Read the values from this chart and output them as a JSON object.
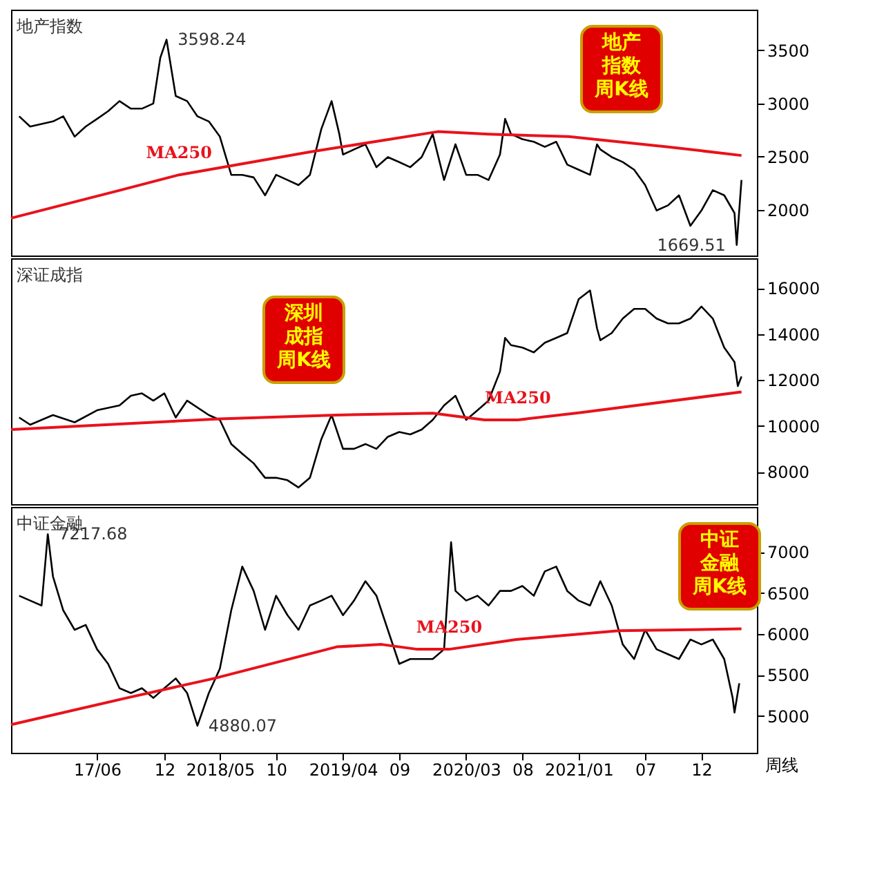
{
  "chart_data": [
    {
      "type": "line",
      "title": "地产指数",
      "xlim": [
        "2016-10-10",
        "2022-05-01"
      ],
      "ylim": [
        1570,
        3880
      ],
      "yticks": [
        2000,
        2500,
        3000,
        3500
      ],
      "tick_labels": "y",
      "grid": false,
      "annotations": [
        "地产指数周K线",
        {
          "text": "3598.24",
          "x": "2017-12-07",
          "y": 3598.24
        },
        {
          "text": "1669.51",
          "x": "2022-03-07",
          "y": 1669.51
        }
      ],
      "series": [
        {
          "color": "#000000",
          "x": [
            "2016-11-01",
            "2016-12-01",
            "2017-01-01",
            "2017-02-01",
            "2017-03-01",
            "2017-04-01",
            "2017-05-01",
            "2017-06-01",
            "2017-07-01",
            "2017-08-01",
            "2017-09-01",
            "2017-10-01",
            "2017-11-01",
            "2017-11-20",
            "2017-12-07",
            "2018-01-01",
            "2018-02-01",
            "2018-03-01",
            "2018-04-01",
            "2018-05-01",
            "2018-06-01",
            "2018-07-01",
            "2018-08-01",
            "2018-09-01",
            "2018-10-01",
            "2018-11-01",
            "2018-12-01",
            "2019-01-01",
            "2019-02-01",
            "2019-03-01",
            "2019-03-22",
            "2019-04-01",
            "2019-05-01",
            "2019-06-01",
            "2019-07-01",
            "2019-08-01",
            "2019-09-01",
            "2019-10-01",
            "2019-11-01",
            "2019-12-01",
            "2020-01-01",
            "2020-02-01",
            "2020-03-01",
            "2020-04-01",
            "2020-05-01",
            "2020-06-01",
            "2020-06-15",
            "2020-07-01",
            "2020-08-01",
            "2020-09-01",
            "2020-10-01",
            "2020-11-01",
            "2020-12-01",
            "2021-01-01",
            "2021-02-01",
            "2021-02-20",
            "2021-03-01",
            "2021-04-01",
            "2021-05-01",
            "2021-06-01",
            "2021-07-01",
            "2021-08-01",
            "2021-09-01",
            "2021-10-01",
            "2021-11-01",
            "2021-12-01",
            "2022-01-01",
            "2022-02-01",
            "2022-03-01",
            "2022-03-07",
            "2022-03-20"
          ],
          "values": [
            2878,
            2782,
            2806,
            2830,
            2878,
            2687,
            2782,
            2854,
            2926,
            3021,
            2950,
            2950,
            2998,
            3428,
            3598.24,
            3069,
            3021,
            2878,
            2830,
            2687,
            2328,
            2328,
            2304,
            2136,
            2328,
            2280,
            2232,
            2328,
            2758,
            3021,
            2711,
            2519,
            2567,
            2615,
            2400,
            2495,
            2448,
            2400,
            2495,
            2711,
            2280,
            2615,
            2328,
            2328,
            2280,
            2519,
            2854,
            2711,
            2663,
            2639,
            2591,
            2639,
            2424,
            2376,
            2328,
            2615,
            2567,
            2495,
            2448,
            2376,
            2232,
            1993,
            2041,
            2136,
            1849,
            1993,
            2184,
            2136,
            1969,
            1669.51,
            2280
          ]
        },
        {
          "name": "MA250",
          "color": "#e8121b",
          "x": [
            "2016-10-10",
            "2017-08-03",
            "2018-01-10",
            "2019-01-01",
            "2019-12-15",
            "2020-05-01",
            "2020-12-05",
            "2021-09-01",
            "2022-03-20"
          ],
          "values": [
            1921,
            2184,
            2328,
            2543,
            2734,
            2711,
            2687,
            2591,
            2510
          ]
        }
      ]
    },
    {
      "type": "line",
      "title": "深证成指",
      "xlim": [
        "2016-10-10",
        "2022-05-01"
      ],
      "ylim": [
        6600,
        17300
      ],
      "yticks": [
        8000,
        10000,
        12000,
        14000,
        16000
      ],
      "tick_labels": "y",
      "grid": false,
      "annotations": [
        "深圳成指周K线"
      ],
      "series": [
        {
          "color": "#000000",
          "x": [
            "2016-11-01",
            "2016-12-01",
            "2017-02-01",
            "2017-04-01",
            "2017-06-01",
            "2017-08-01",
            "2017-09-01",
            "2017-10-01",
            "2017-11-01",
            "2017-12-01",
            "2018-01-01",
            "2018-02-01",
            "2018-04-01",
            "2018-05-01",
            "2018-06-01",
            "2018-07-01",
            "2018-08-01",
            "2018-09-01",
            "2018-10-01",
            "2018-11-01",
            "2018-12-01",
            "2019-01-01",
            "2019-02-01",
            "2019-03-01",
            "2019-04-01",
            "2019-05-01",
            "2019-06-01",
            "2019-07-01",
            "2019-08-01",
            "2019-09-01",
            "2019-10-01",
            "2019-11-01",
            "2019-12-01",
            "2020-01-01",
            "2020-02-01",
            "2020-03-01",
            "2020-04-01",
            "2020-05-01",
            "2020-06-01",
            "2020-06-15",
            "2020-07-01",
            "2020-08-01",
            "2020-09-01",
            "2020-10-01",
            "2020-11-01",
            "2020-12-01",
            "2021-01-01",
            "2021-02-01",
            "2021-02-20",
            "2021-03-01",
            "2021-04-01",
            "2021-05-01",
            "2021-06-01",
            "2021-07-01",
            "2021-08-01",
            "2021-09-01",
            "2021-10-01",
            "2021-11-01",
            "2021-12-01",
            "2022-01-01",
            "2022-02-01",
            "2022-03-01",
            "2022-03-10",
            "2022-03-20"
          ],
          "values": [
            10372,
            10057,
            10477,
            10162,
            10687,
            10897,
            11317,
            11422,
            11107,
            11422,
            10372,
            11107,
            10477,
            10267,
            9217,
            8797,
            8377,
            7747,
            7747,
            7642,
            7327,
            7747,
            9427,
            10477,
            9007,
            9007,
            9217,
            9007,
            9532,
            9742,
            9637,
            9847,
            10267,
            10897,
            11317,
            10267,
            10687,
            11107,
            12367,
            13837,
            13522,
            13417,
            13207,
            13627,
            13837,
            14047,
            15517,
            15900,
            14257,
            13732,
            14047,
            14677,
            15097,
            15097,
            14677,
            14467,
            14467,
            14677,
            15202,
            14677,
            13417,
            12787,
            11737,
            12157
          ]
        },
        {
          "name": "MA250",
          "color": "#e8121b",
          "x": [
            "2016-10-10",
            "2018-05-01",
            "2019-03-15",
            "2019-12-01",
            "2020-04-20",
            "2020-07-20",
            "2021-01-05",
            "2022-03-20"
          ],
          "values": [
            9847,
            10309,
            10477,
            10561,
            10267,
            10267,
            10582,
            11485
          ]
        }
      ]
    },
    {
      "type": "line",
      "title": "中证金融",
      "xlim": [
        "2016-10-10",
        "2022-05-01"
      ],
      "ylim": [
        4550,
        7550
      ],
      "yticks": [
        5000,
        5500,
        6000,
        6500,
        7000
      ],
      "grid": false,
      "xticks": [
        {
          "value": "2017-06-01",
          "label": "17/06"
        },
        {
          "value": "2017-12-01",
          "label": "12"
        },
        {
          "value": "2018-05-01",
          "label": "2018/05"
        },
        {
          "value": "2018-10-01",
          "label": "10"
        },
        {
          "value": "2019-04-01",
          "label": "2019/04"
        },
        {
          "value": "2019-09-01",
          "label": "09"
        },
        {
          "value": "2020-03-01",
          "label": "2020/03"
        },
        {
          "value": "2020-08-01",
          "label": "08"
        },
        {
          "value": "2021-01-01",
          "label": "2021/01"
        },
        {
          "value": "2021-07-01",
          "label": "07"
        },
        {
          "value": "2021-12-01",
          "label": "12"
        }
      ],
      "annotations": [
        "中证金融周K线",
        "周线",
        {
          "text": "7217.68",
          "x": "2017-01-18",
          "y": 7217.68
        },
        {
          "text": "4880.07",
          "x": "2018-03-01",
          "y": 4880.07
        }
      ],
      "series": [
        {
          "color": "#000000",
          "x": [
            "2016-11-01",
            "2016-12-01",
            "2017-01-01",
            "2017-01-18",
            "2017-02-01",
            "2017-03-01",
            "2017-04-01",
            "2017-05-01",
            "2017-06-01",
            "2017-07-01",
            "2017-08-01",
            "2017-09-01",
            "2017-10-01",
            "2017-11-01",
            "2017-12-01",
            "2018-01-01",
            "2018-02-01",
            "2018-03-01",
            "2018-04-01",
            "2018-05-01",
            "2018-06-01",
            "2018-07-01",
            "2018-08-01",
            "2018-09-01",
            "2018-10-01",
            "2018-11-01",
            "2018-12-01",
            "2019-01-01",
            "2019-02-01",
            "2019-03-01",
            "2019-04-01",
            "2019-05-01",
            "2019-06-01",
            "2019-07-01",
            "2019-08-01",
            "2019-09-01",
            "2019-10-01",
            "2019-11-01",
            "2019-12-01",
            "2020-01-01",
            "2020-01-20",
            "2020-02-01",
            "2020-03-01",
            "2020-04-01",
            "2020-05-01",
            "2020-06-01",
            "2020-07-01",
            "2020-08-01",
            "2020-09-01",
            "2020-10-01",
            "2020-11-01",
            "2020-12-01",
            "2021-01-01",
            "2021-02-01",
            "2021-03-01",
            "2021-04-01",
            "2021-05-01",
            "2021-06-01",
            "2021-07-01",
            "2021-08-01",
            "2021-09-01",
            "2021-10-01",
            "2021-11-01",
            "2021-12-01",
            "2022-01-01",
            "2022-02-01",
            "2022-02-24",
            "2022-03-01",
            "2022-03-14"
          ],
          "values": [
            6466,
            6407,
            6347,
            7217.68,
            6703,
            6288,
            6050,
            6110,
            5813,
            5635,
            5338,
            5279,
            5338,
            5219,
            5338,
            5457,
            5279,
            4880.07,
            5279,
            5576,
            6288,
            6822,
            6525,
            6050,
            6466,
            6229,
            6050,
            6347,
            6407,
            6466,
            6229,
            6407,
            6644,
            6466,
            6050,
            5635,
            5694,
            5694,
            5694,
            5813,
            7119,
            6525,
            6407,
            6466,
            6347,
            6525,
            6525,
            6585,
            6466,
            6763,
            6822,
            6525,
            6407,
            6347,
            6644,
            6347,
            5872,
            5694,
            6050,
            5813,
            5753,
            5694,
            5932,
            5872,
            5932,
            5694,
            5219,
            5041,
            5398
          ]
        },
        {
          "name": "MA250",
          "color": "#e8121b",
          "x": [
            "2016-10-10",
            "2017-08-20",
            "2018-04-15",
            "2019-03-15",
            "2019-07-15",
            "2019-10-20",
            "2020-01-15",
            "2020-07-15",
            "2021-04-20",
            "2022-03-20"
          ],
          "values": [
            4893,
            5219,
            5457,
            5843,
            5872,
            5813,
            5813,
            5932,
            6039,
            6062
          ]
        }
      ]
    }
  ]
}
